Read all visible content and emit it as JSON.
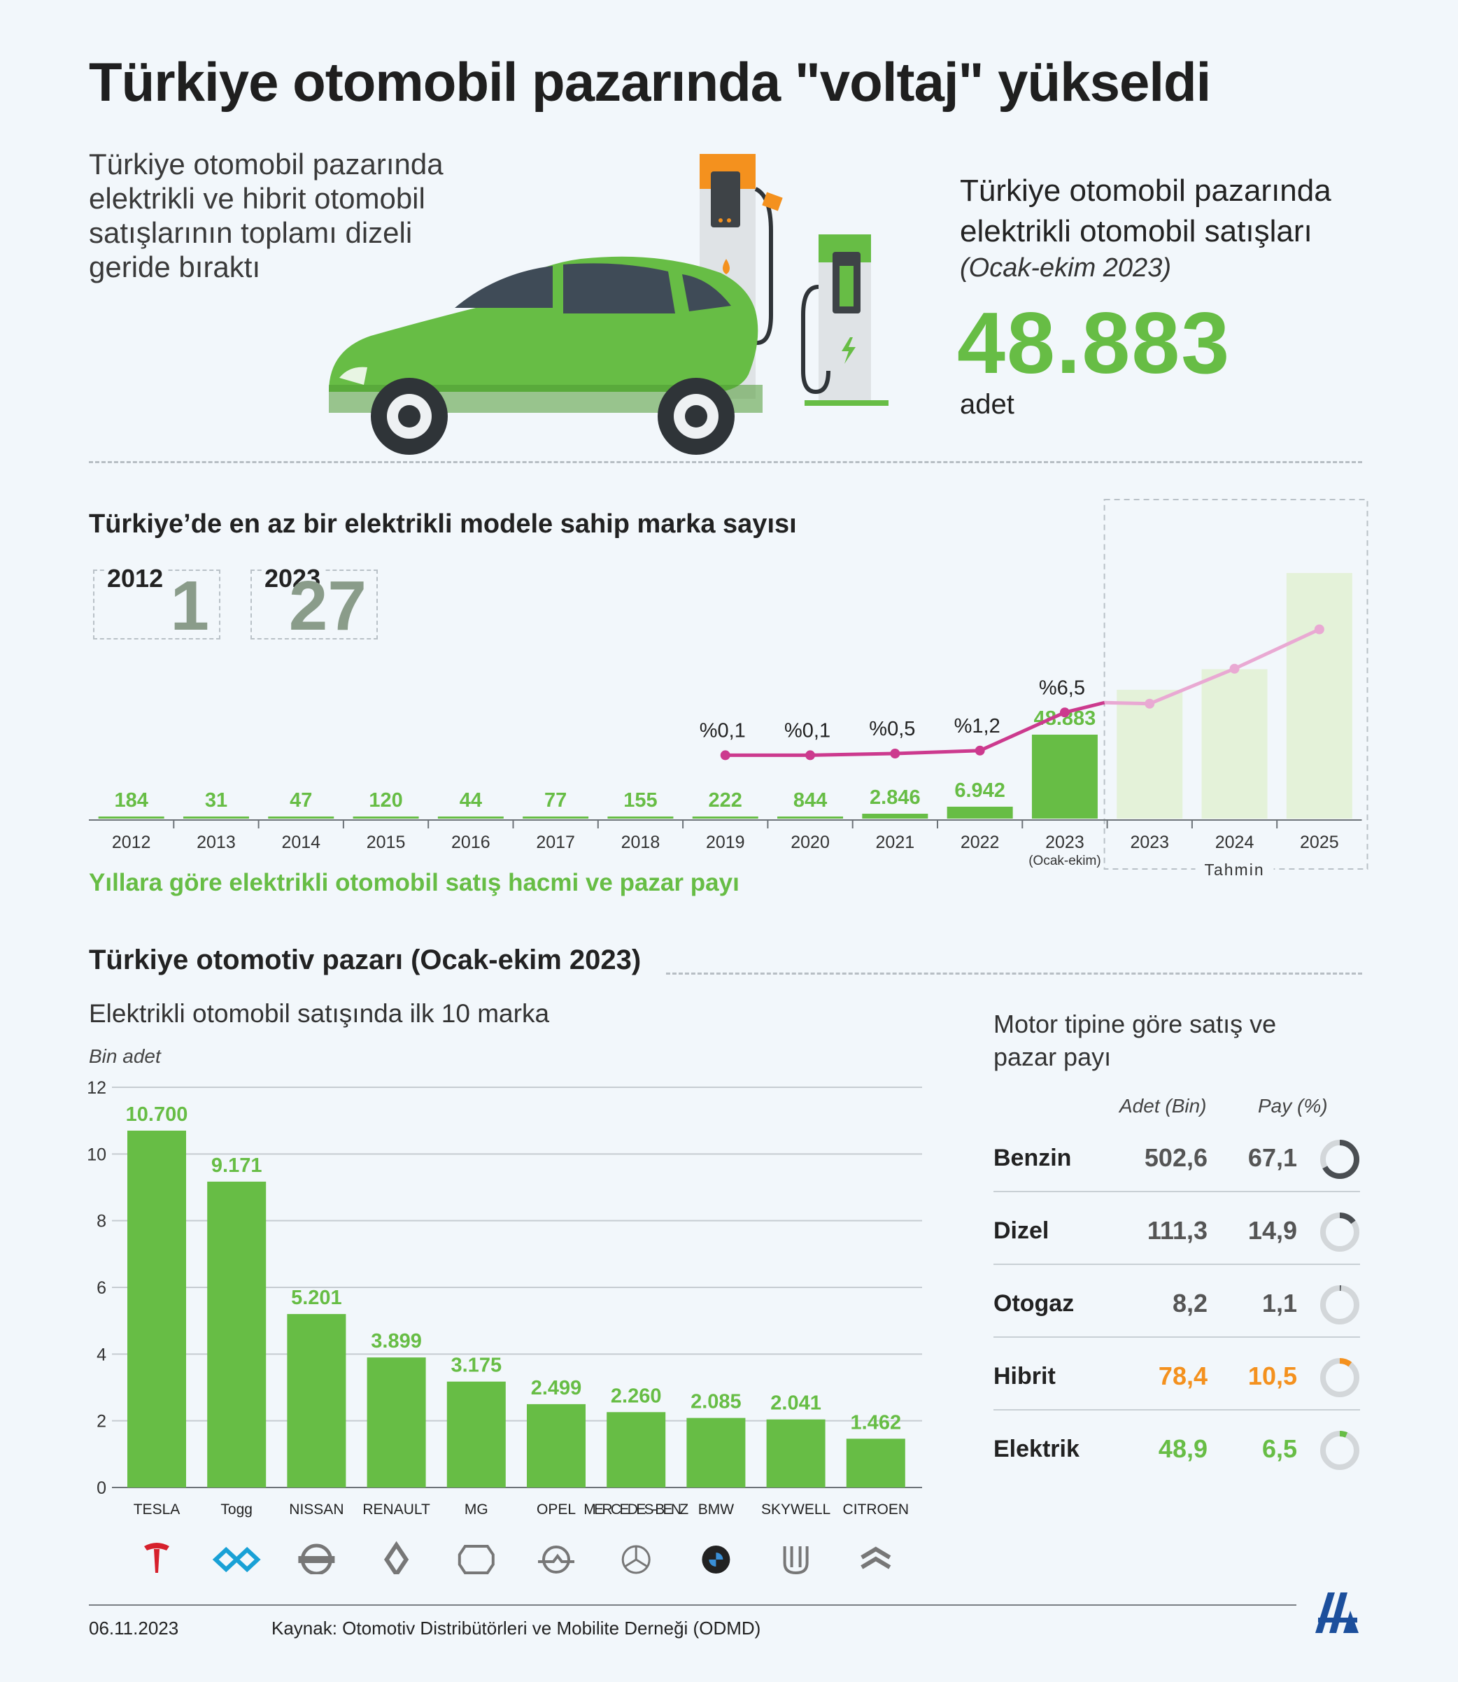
{
  "header": {
    "title": "Türkiye otomobil pazarında \"voltaj\" yükseldi",
    "intro": "Türkiye otomobil pazarında elektrikli ve hibrit otomobil satışlarının toplamı dizeli geride bıraktı"
  },
  "ev_summary": {
    "title": "Türkiye otomobil pazarında elektrikli otomobil satışları",
    "period": "(Ocak-ekim 2023)",
    "number": "48.883",
    "unit": "adet"
  },
  "brand_count": {
    "title": "Türkiye’de en az bir elektrikli modele sahip marka sayısı",
    "items": [
      {
        "year": "2012",
        "count": "1"
      },
      {
        "year": "2023",
        "count": "27"
      }
    ]
  },
  "colors": {
    "green": "#67bd45",
    "green_light": "#e4f2d9",
    "pink": "#cc3a8e",
    "pink_light": "#e9a9d3",
    "orange": "#f4911e",
    "dark": "#4a4e52"
  },
  "chart_data": [
    {
      "type": "bar",
      "title": "Yıllara göre elektrikli otomobil satış hacmi ve pazar payı",
      "categories": [
        "2012",
        "2013",
        "2014",
        "2015",
        "2016",
        "2017",
        "2018",
        "2019",
        "2020",
        "2021",
        "2022",
        "2023",
        "2023",
        "2024",
        "2025"
      ],
      "sub_labels": [
        "",
        "",
        "",
        "",
        "",
        "",
        "",
        "",
        "",
        "",
        "",
        "(Ocak-ekim)",
        "",
        "",
        ""
      ],
      "forecast_label": "Tahmin",
      "series": [
        {
          "values": [
            184,
            31,
            47,
            120,
            44,
            77,
            155,
            222,
            844,
            2846,
            6942,
            48883,
            null,
            null,
            null
          ],
          "labels": [
            "184",
            "31",
            "47",
            "120",
            "44",
            "77",
            "155",
            "222",
            "844",
            "2.846",
            "6.942",
            "48.883",
            "",
            "",
            ""
          ]
        }
      ],
      "forecast_bars": [
        {
          "year": "2023",
          "value": 75000
        },
        {
          "year": "2024",
          "value": 87000
        },
        {
          "year": "2025",
          "value": 143000
        }
      ],
      "market_share": {
        "type": "line",
        "x": [
          "2019",
          "2020",
          "2021",
          "2022",
          "2023"
        ],
        "values": [
          0.1,
          0.1,
          0.5,
          1.2,
          6.5
        ],
        "labels": [
          "%0,1",
          "%0,1",
          "%0,5",
          "%1,2",
          "%6,5"
        ],
        "forecast_values": [
          7.5,
          11.5,
          16.0
        ]
      }
    },
    {
      "type": "bar",
      "title": "Elektrikli otomobil satışında ilk 10 marka",
      "ylabel": "Bin adet",
      "ylim": [
        0,
        12
      ],
      "yticks": [
        0,
        2,
        4,
        6,
        8,
        10,
        12
      ],
      "grid": true,
      "categories": [
        "TESLA",
        "Togg",
        "NISSAN",
        "RENAULT",
        "MG",
        "OPEL",
        "MERCEDES-BENZ",
        "BMW",
        "SKYWELL",
        "CITROEN"
      ],
      "values": [
        10.7,
        9.171,
        5.201,
        3.899,
        3.175,
        2.499,
        2.26,
        2.085,
        2.041,
        1.462
      ],
      "labels": [
        "10.700",
        "9.171",
        "5.201",
        "3.899",
        "3.175",
        "2.499",
        "2.260",
        "2.085",
        "2.041",
        "1.462"
      ]
    }
  ],
  "market": {
    "title": "Türkiye otomotiv pazarı (Ocak-ekim 2023)",
    "top10_subtitle": "Elektrikli otomobil satışında ilk 10 marka",
    "unit_label": "Bin adet"
  },
  "motor_table": {
    "title": "Motor tipine göre satış ve pazar payı",
    "col_count": "Adet (Bin)",
    "col_share": "Pay (%)",
    "rows": [
      {
        "name": "Benzin",
        "count": "502,6",
        "share": "67,1",
        "share_value": 67.1,
        "color": "#4a4e52"
      },
      {
        "name": "Dizel",
        "count": "111,3",
        "share": "14,9",
        "share_value": 14.9,
        "color": "#4a4e52"
      },
      {
        "name": "Otogaz",
        "count": "8,2",
        "share": "1,1",
        "share_value": 1.1,
        "color": "#4a4e52"
      },
      {
        "name": "Hibrit",
        "count": "78,4",
        "share": "10,5",
        "share_value": 10.5,
        "color": "#f4911e"
      },
      {
        "name": "Elektrik",
        "count": "48,9",
        "share": "6,5",
        "share_value": 6.5,
        "color": "#67bd45"
      }
    ]
  },
  "footer": {
    "date": "06.11.2023",
    "source": "Kaynak: Otomotiv Distribütörleri ve Mobilite Derneği (ODMD)",
    "logo_text": "AA"
  }
}
